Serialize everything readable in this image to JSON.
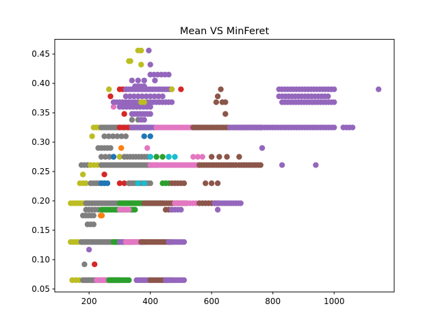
{
  "chart_data": {
    "type": "scatter",
    "title": "Mean VS MinFeret",
    "xlabel": "",
    "ylabel": "",
    "xlim": [
      88,
      1196
    ],
    "ylim": [
      0.045,
      0.475
    ],
    "x_ticks": [
      200,
      400,
      600,
      800,
      1000
    ],
    "y_ticks": [
      0.05,
      0.1,
      0.15,
      0.2,
      0.25,
      0.3,
      0.35,
      0.4,
      0.45
    ],
    "x_tick_labels": [
      "200",
      "400",
      "600",
      "800",
      "1000"
    ],
    "y_tick_labels": [
      "0.05",
      "0.10",
      "0.15",
      "0.20",
      "0.25",
      "0.30",
      "0.35",
      "0.40",
      "0.45"
    ],
    "grid": false,
    "legend": "none",
    "colors": [
      "#1f77b4",
      "#ff7f0e",
      "#2ca02c",
      "#d62728",
      "#9467bd",
      "#8c564b",
      "#e377c2",
      "#7f7f7f",
      "#bcbd22",
      "#17becf"
    ],
    "bands": [
      {
        "y": 0.065,
        "segments": [
          {
            "c": 8,
            "x0": 145,
            "x1": 180,
            "n": 4
          },
          {
            "c": 7,
            "x0": 180,
            "x1": 300,
            "n": 24
          },
          {
            "c": 6,
            "x0": 225,
            "x1": 265,
            "n": 6
          },
          {
            "c": 2,
            "x0": 265,
            "x1": 330,
            "n": 14
          },
          {
            "c": 4,
            "x0": 355,
            "x1": 400,
            "n": 8
          },
          {
            "c": 5,
            "x0": 400,
            "x1": 470,
            "n": 10
          },
          {
            "c": 4,
            "x0": 450,
            "x1": 510,
            "n": 10
          }
        ]
      },
      {
        "y": 0.092,
        "segments": [
          {
            "c": 7,
            "x0": 185,
            "x1": 185,
            "n": 1
          },
          {
            "c": 3,
            "x0": 218,
            "x1": 218,
            "n": 1
          }
        ]
      },
      {
        "y": 0.117,
        "segments": [
          {
            "c": 4,
            "x0": 200,
            "x1": 200,
            "n": 1
          }
        ]
      },
      {
        "y": 0.13,
        "segments": [
          {
            "c": 8,
            "x0": 140,
            "x1": 175,
            "n": 5
          },
          {
            "c": 7,
            "x0": 175,
            "x1": 300,
            "n": 26
          },
          {
            "c": 2,
            "x0": 280,
            "x1": 340,
            "n": 10
          },
          {
            "c": 4,
            "x0": 300,
            "x1": 380,
            "n": 14
          },
          {
            "c": 6,
            "x0": 320,
            "x1": 370,
            "n": 8
          },
          {
            "c": 5,
            "x0": 370,
            "x1": 470,
            "n": 18
          },
          {
            "c": 4,
            "x0": 460,
            "x1": 510,
            "n": 8
          }
        ]
      },
      {
        "y": 0.16,
        "segments": [
          {
            "c": 7,
            "x0": 195,
            "x1": 215,
            "n": 3
          }
        ]
      },
      {
        "y": 0.175,
        "segments": [
          {
            "c": 7,
            "x0": 180,
            "x1": 215,
            "n": 5
          },
          {
            "c": 1,
            "x0": 238,
            "x1": 242,
            "n": 2
          }
        ]
      },
      {
        "y": 0.185,
        "segments": [
          {
            "c": 7,
            "x0": 190,
            "x1": 230,
            "n": 5
          },
          {
            "c": 2,
            "x0": 240,
            "x1": 350,
            "n": 18
          },
          {
            "c": 6,
            "x0": 300,
            "x1": 330,
            "n": 4
          },
          {
            "c": 5,
            "x0": 450,
            "x1": 470,
            "n": 3
          },
          {
            "c": 4,
            "x0": 470,
            "x1": 500,
            "n": 4
          },
          {
            "c": 4,
            "x0": 620,
            "x1": 625,
            "n": 1
          }
        ]
      },
      {
        "y": 0.196,
        "segments": [
          {
            "c": 8,
            "x0": 140,
            "x1": 190,
            "n": 7
          },
          {
            "c": 7,
            "x0": 190,
            "x1": 370,
            "n": 28
          },
          {
            "c": 2,
            "x0": 300,
            "x1": 440,
            "n": 22
          },
          {
            "c": 5,
            "x0": 380,
            "x1": 520,
            "n": 22
          },
          {
            "c": 6,
            "x0": 480,
            "x1": 610,
            "n": 14
          },
          {
            "c": 5,
            "x0": 560,
            "x1": 620,
            "n": 7
          },
          {
            "c": 4,
            "x0": 610,
            "x1": 695,
            "n": 12
          }
        ]
      },
      {
        "y": 0.23,
        "segments": [
          {
            "c": 8,
            "x0": 170,
            "x1": 190,
            "n": 3
          },
          {
            "c": 7,
            "x0": 205,
            "x1": 250,
            "n": 6
          },
          {
            "c": 0,
            "x0": 240,
            "x1": 260,
            "n": 3
          },
          {
            "c": 3,
            "x0": 300,
            "x1": 330,
            "n": 3
          },
          {
            "c": 7,
            "x0": 330,
            "x1": 400,
            "n": 10
          },
          {
            "c": 9,
            "x0": 360,
            "x1": 380,
            "n": 2
          },
          {
            "c": 2,
            "x0": 440,
            "x1": 460,
            "n": 3
          },
          {
            "c": 5,
            "x0": 470,
            "x1": 510,
            "n": 5
          },
          {
            "c": 5,
            "x0": 580,
            "x1": 620,
            "n": 3
          }
        ]
      },
      {
        "y": 0.245,
        "segments": [
          {
            "c": 8,
            "x0": 180,
            "x1": 180,
            "n": 1
          },
          {
            "c": 3,
            "x0": 250,
            "x1": 250,
            "n": 1
          }
        ]
      },
      {
        "y": 0.261,
        "segments": [
          {
            "c": 7,
            "x0": 175,
            "x1": 205,
            "n": 4
          },
          {
            "c": 8,
            "x0": 205,
            "x1": 240,
            "n": 4
          },
          {
            "c": 7,
            "x0": 240,
            "x1": 420,
            "n": 30
          },
          {
            "c": 0,
            "x0": 400,
            "x1": 420,
            "n": 2
          },
          {
            "c": 6,
            "x0": 400,
            "x1": 560,
            "n": 24
          },
          {
            "c": 5,
            "x0": 560,
            "x1": 680,
            "n": 16
          },
          {
            "c": 5,
            "x0": 690,
            "x1": 760,
            "n": 10
          },
          {
            "c": 4,
            "x0": 830,
            "x1": 830,
            "n": 1
          },
          {
            "c": 4,
            "x0": 940,
            "x1": 940,
            "n": 1
          }
        ]
      },
      {
        "y": 0.275,
        "segments": [
          {
            "c": 7,
            "x0": 240,
            "x1": 280,
            "n": 4
          },
          {
            "c": 0,
            "x0": 280,
            "x1": 300,
            "n": 2
          },
          {
            "c": 8,
            "x0": 300,
            "x1": 315,
            "n": 2
          },
          {
            "c": 7,
            "x0": 315,
            "x1": 400,
            "n": 10
          },
          {
            "c": 9,
            "x0": 400,
            "x1": 420,
            "n": 2
          },
          {
            "c": 2,
            "x0": 420,
            "x1": 460,
            "n": 3
          },
          {
            "c": 9,
            "x0": 460,
            "x1": 480,
            "n": 2
          },
          {
            "c": 6,
            "x0": 540,
            "x1": 570,
            "n": 3
          },
          {
            "c": 5,
            "x0": 600,
            "x1": 650,
            "n": 3
          },
          {
            "c": 5,
            "x0": 690,
            "x1": 700,
            "n": 1
          }
        ]
      },
      {
        "y": 0.29,
        "segments": [
          {
            "c": 7,
            "x0": 230,
            "x1": 270,
            "n": 5
          },
          {
            "c": 1,
            "x0": 305,
            "x1": 305,
            "n": 1
          },
          {
            "c": 6,
            "x0": 390,
            "x1": 390,
            "n": 1
          },
          {
            "c": 4,
            "x0": 765,
            "x1": 765,
            "n": 1
          }
        ]
      },
      {
        "y": 0.31,
        "segments": [
          {
            "c": 8,
            "x0": 210,
            "x1": 215,
            "n": 1
          },
          {
            "c": 7,
            "x0": 250,
            "x1": 320,
            "n": 6
          },
          {
            "c": 0,
            "x0": 380,
            "x1": 400,
            "n": 2
          }
        ]
      },
      {
        "y": 0.325,
        "segments": [
          {
            "c": 8,
            "x0": 215,
            "x1": 240,
            "n": 4
          },
          {
            "c": 7,
            "x0": 240,
            "x1": 400,
            "n": 28
          },
          {
            "c": 3,
            "x0": 300,
            "x1": 340,
            "n": 4
          },
          {
            "c": 4,
            "x0": 340,
            "x1": 420,
            "n": 10
          },
          {
            "c": 6,
            "x0": 420,
            "x1": 560,
            "n": 20
          },
          {
            "c": 5,
            "x0": 540,
            "x1": 760,
            "n": 30
          },
          {
            "c": 4,
            "x0": 660,
            "x1": 1000,
            "n": 40
          },
          {
            "c": 4,
            "x0": 1030,
            "x1": 1060,
            "n": 4
          }
        ]
      },
      {
        "y": 0.338,
        "segments": [
          {
            "c": 7,
            "x0": 340,
            "x1": 360,
            "n": 2
          },
          {
            "c": 4,
            "x0": 370,
            "x1": 380,
            "n": 2
          }
        ]
      },
      {
        "y": 0.348,
        "segments": [
          {
            "c": 3,
            "x0": 315,
            "x1": 315,
            "n": 1
          },
          {
            "c": 4,
            "x0": 340,
            "x1": 400,
            "n": 8
          },
          {
            "c": 5,
            "x0": 645,
            "x1": 645,
            "n": 1
          }
        ]
      },
      {
        "y": 0.36,
        "segments": [
          {
            "c": 4,
            "x0": 300,
            "x1": 400,
            "n": 10
          },
          {
            "c": 6,
            "x0": 280,
            "x1": 280,
            "n": 1
          }
        ]
      },
      {
        "y": 0.368,
        "segments": [
          {
            "c": 4,
            "x0": 280,
            "x1": 470,
            "n": 20
          },
          {
            "c": 8,
            "x0": 370,
            "x1": 380,
            "n": 2
          },
          {
            "c": 5,
            "x0": 615,
            "x1": 615,
            "n": 1
          },
          {
            "c": 5,
            "x0": 635,
            "x1": 645,
            "n": 2
          },
          {
            "c": 4,
            "x0": 830,
            "x1": 1000,
            "n": 20
          }
        ]
      },
      {
        "y": 0.378,
        "segments": [
          {
            "c": 3,
            "x0": 270,
            "x1": 270,
            "n": 1
          },
          {
            "c": 4,
            "x0": 320,
            "x1": 440,
            "n": 10
          },
          {
            "c": 5,
            "x0": 620,
            "x1": 625,
            "n": 1
          },
          {
            "c": 4,
            "x0": 820,
            "x1": 980,
            "n": 16
          }
        ]
      },
      {
        "y": 0.39,
        "segments": [
          {
            "c": 8,
            "x0": 265,
            "x1": 270,
            "n": 1
          },
          {
            "c": 3,
            "x0": 300,
            "x1": 320,
            "n": 3
          },
          {
            "c": 4,
            "x0": 320,
            "x1": 470,
            "n": 20
          },
          {
            "c": 8,
            "x0": 470,
            "x1": 480,
            "n": 1
          },
          {
            "c": 3,
            "x0": 500,
            "x1": 500,
            "n": 1
          },
          {
            "c": 5,
            "x0": 630,
            "x1": 630,
            "n": 1
          },
          {
            "c": 4,
            "x0": 820,
            "x1": 1000,
            "n": 20
          },
          {
            "c": 4,
            "x0": 1145,
            "x1": 1145,
            "n": 1
          }
        ]
      },
      {
        "y": 0.395,
        "segments": [
          {
            "c": 4,
            "x0": 350,
            "x1": 380,
            "n": 4
          }
        ]
      },
      {
        "y": 0.405,
        "segments": [
          {
            "c": 4,
            "x0": 340,
            "x1": 380,
            "n": 3
          },
          {
            "c": 4,
            "x0": 415,
            "x1": 420,
            "n": 1
          }
        ]
      },
      {
        "y": 0.415,
        "segments": [
          {
            "c": 4,
            "x0": 400,
            "x1": 460,
            "n": 6
          }
        ]
      },
      {
        "y": 0.432,
        "segments": [
          {
            "c": 8,
            "x0": 370,
            "x1": 370,
            "n": 1
          },
          {
            "c": 4,
            "x0": 400,
            "x1": 400,
            "n": 1
          }
        ]
      },
      {
        "y": 0.438,
        "segments": [
          {
            "c": 8,
            "x0": 330,
            "x1": 335,
            "n": 2
          }
        ]
      },
      {
        "y": 0.456,
        "segments": [
          {
            "c": 8,
            "x0": 360,
            "x1": 370,
            "n": 2
          },
          {
            "c": 4,
            "x0": 395,
            "x1": 395,
            "n": 1
          }
        ]
      }
    ]
  }
}
